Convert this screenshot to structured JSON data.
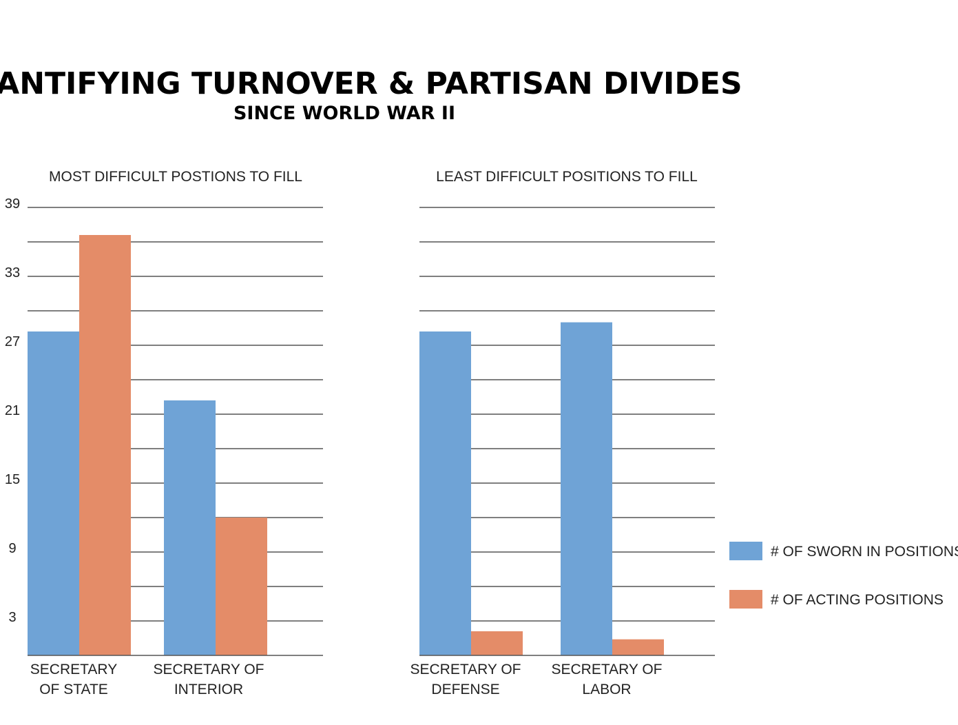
{
  "title": "QUANTIFYING TURNOVER & PARTISAN DIVIDES",
  "subtitle": "SINCE WORLD WAR II",
  "chart_data": [
    {
      "type": "bar",
      "title": "MOST DIFFICULT POSTIONS TO FILL",
      "categories": [
        [
          "SECRETARY",
          "OF STATE"
        ],
        [
          "SECRETARY OF",
          "INTERIOR"
        ]
      ],
      "series": [
        {
          "name": "# OF SWORN IN POSITIONS",
          "values": [
            28.2,
            22.2
          ],
          "color": "#6fa3d6"
        },
        {
          "name": "# OF ACTING POSITIONS",
          "values": [
            36.6,
            12.0
          ],
          "color": "#e48c68"
        }
      ],
      "ylim": [
        0,
        39
      ],
      "yticks": [
        3,
        9,
        15,
        21,
        27,
        33,
        39
      ],
      "show_tick_labels": true,
      "grid": true
    },
    {
      "type": "bar",
      "title": "LEAST DIFFICULT POSITIONS TO FILL",
      "categories": [
        [
          "SECRETARY OF",
          "DEFENSE"
        ],
        [
          "SECRETARY OF",
          "LABOR"
        ]
      ],
      "series": [
        {
          "name": "# OF SWORN IN POSITIONS",
          "values": [
            28.2,
            29.0
          ],
          "color": "#6fa3d6"
        },
        {
          "name": "# OF ACTING POSITIONS",
          "values": [
            2.1,
            1.4
          ],
          "color": "#e48c68"
        }
      ],
      "ylim": [
        0,
        39
      ],
      "yticks": [
        3,
        9,
        15,
        21,
        27,
        33,
        39
      ],
      "show_tick_labels": false,
      "grid": true
    }
  ],
  "legend": {
    "position": "right",
    "items": [
      {
        "label": "# OF SWORN IN POSITIONS",
        "color": "#6fa3d6"
      },
      {
        "label": "# OF ACTING POSITIONS",
        "color": "#e48c68"
      }
    ]
  }
}
